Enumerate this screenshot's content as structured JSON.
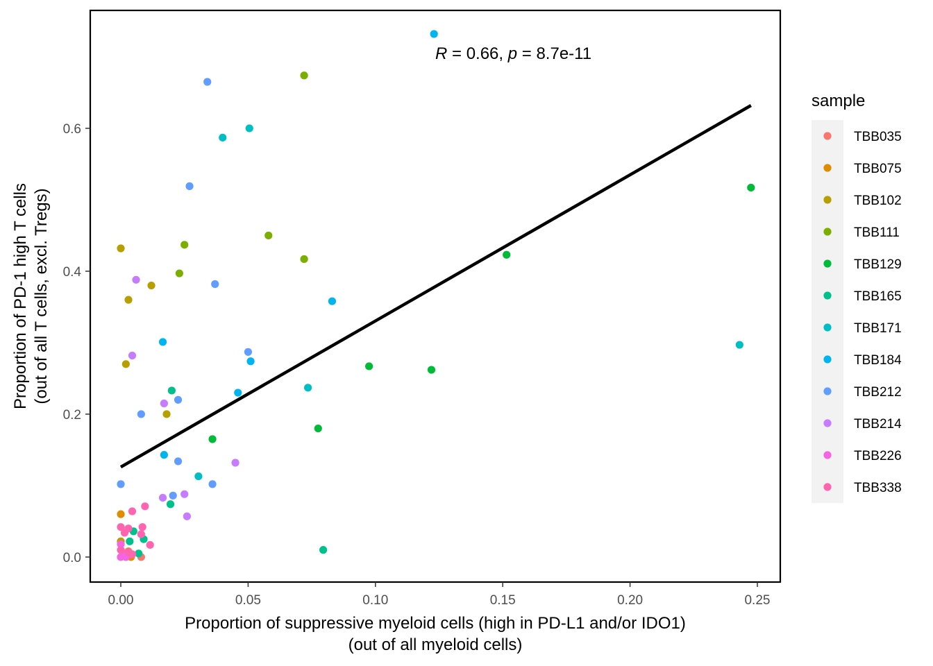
{
  "chart_data": {
    "type": "scatter",
    "xlabel": "Proportion of suppressive myeloid cells (high in PD-L1 and/or IDO1)",
    "xlabel2": "(out of all myeloid cells)",
    "ylabel": "Proportion of PD-1 high T cells",
    "ylabel2": "(out of all T cells, excl. Tregs)",
    "xlim": [
      -0.012,
      0.259
    ],
    "ylim": [
      -0.035,
      0.765
    ],
    "xticks": [
      0.0,
      0.05,
      0.1,
      0.15,
      0.2,
      0.25
    ],
    "xtick_labels": [
      "0.00",
      "0.05",
      "0.10",
      "0.15",
      "0.20",
      "0.25"
    ],
    "yticks": [
      0.0,
      0.2,
      0.4,
      0.6
    ],
    "ytick_labels": [
      "0.0",
      "0.2",
      "0.4",
      "0.6"
    ],
    "grid": false,
    "legend_position": "right",
    "legend_title": "sample",
    "annotation": {
      "r_symbol": "R",
      "r_text": " = 0.66, ",
      "p_symbol": "p",
      "p_text": " = 8.7e-11",
      "x": 0.125,
      "y": 0.709
    },
    "regression_line": {
      "x": [
        0.0,
        0.2475
      ],
      "y": [
        0.126,
        0.632
      ],
      "color": "#000000"
    },
    "series": [
      {
        "name": "TBB035",
        "color": "#F8766D",
        "x": [
          0.008,
          0.0,
          0.002
        ],
        "y": [
          0.0,
          0.022,
          0.0
        ]
      },
      {
        "name": "TBB075",
        "color": "#DE8C00",
        "x": [
          0.0,
          0.004,
          0.003
        ],
        "y": [
          0.06,
          0.0,
          0.008
        ]
      },
      {
        "name": "TBB102",
        "color": "#B79F00",
        "x": [
          0.0,
          0.003,
          0.012,
          0.002,
          0.018,
          0.0
        ],
        "y": [
          0.432,
          0.36,
          0.38,
          0.27,
          0.2,
          0.022
        ]
      },
      {
        "name": "TBB111",
        "color": "#7CAE00",
        "x": [
          0.072,
          0.058,
          0.072,
          0.025,
          0.023
        ],
        "y": [
          0.674,
          0.45,
          0.417,
          0.437,
          0.397
        ]
      },
      {
        "name": "TBB129",
        "color": "#00BA38",
        "x": [
          0.2475,
          0.1515,
          0.0975,
          0.122,
          0.0775,
          0.036
        ],
        "y": [
          0.517,
          0.423,
          0.267,
          0.262,
          0.18,
          0.165
        ]
      },
      {
        "name": "TBB165",
        "color": "#00C08B",
        "x": [
          0.0795,
          0.02,
          0.0195,
          0.005,
          0.009,
          0.0035,
          0.007
        ],
        "y": [
          0.01,
          0.233,
          0.074,
          0.036,
          0.025,
          0.022,
          0.005
        ]
      },
      {
        "name": "TBB171",
        "color": "#00BFC4",
        "x": [
          0.0505,
          0.04,
          0.243,
          0.0735,
          0.0305
        ],
        "y": [
          0.6,
          0.587,
          0.297,
          0.237,
          0.113
        ]
      },
      {
        "name": "TBB184",
        "color": "#00B4F0",
        "x": [
          0.123,
          0.083,
          0.0165,
          0.051,
          0.046,
          0.017
        ],
        "y": [
          0.732,
          0.358,
          0.301,
          0.274,
          0.23,
          0.143
        ]
      },
      {
        "name": "TBB212",
        "color": "#619CFF",
        "x": [
          0.034,
          0.027,
          0.037,
          0.05,
          0.0225,
          0.008,
          0.0225,
          0.0,
          0.036,
          0.0205
        ],
        "y": [
          0.665,
          0.519,
          0.382,
          0.287,
          0.22,
          0.2,
          0.134,
          0.102,
          0.102,
          0.086
        ]
      },
      {
        "name": "TBB214",
        "color": "#C77CFF",
        "x": [
          0.006,
          0.0045,
          0.017,
          0.045,
          0.0165,
          0.025,
          0.026
        ],
        "y": [
          0.388,
          0.282,
          0.215,
          0.132,
          0.083,
          0.088,
          0.057
        ]
      },
      {
        "name": "TBB226",
        "color": "#F564E3",
        "x": [
          0.0,
          0.001,
          0.002,
          0.0
        ],
        "y": [
          0.0,
          0.005,
          0.0,
          0.018
        ]
      },
      {
        "name": "TBB338",
        "color": "#FF64B0",
        "x": [
          0.0045,
          0.0095,
          0.0,
          0.003,
          0.0085,
          0.0015,
          0.008,
          0.0115,
          0.0,
          0.003,
          0.0045
        ],
        "y": [
          0.064,
          0.071,
          0.042,
          0.04,
          0.042,
          0.034,
          0.032,
          0.017,
          0.01,
          0.007,
          0.004
        ]
      }
    ]
  }
}
